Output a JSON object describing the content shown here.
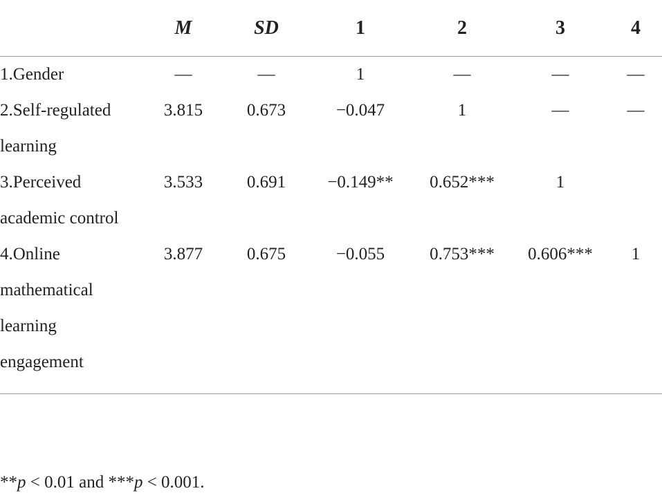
{
  "table": {
    "header": [
      "M",
      "SD",
      "1",
      "2",
      "3",
      "4"
    ],
    "rows": [
      {
        "label": "1.Gender",
        "cells": [
          "—",
          "—",
          "1",
          "—",
          "—",
          "—"
        ]
      },
      {
        "label": "2.Self-regulated learning",
        "cells": [
          "3.815",
          "0.673",
          "−0.047",
          "1",
          "—",
          "—"
        ]
      },
      {
        "label": "3.Perceived academic control",
        "cells": [
          "3.533",
          "0.691",
          "−0.149**",
          "0.652***",
          "1"
        ]
      },
      {
        "label": "4.Online mathematical learning engagement",
        "cells": [
          "3.877",
          "0.675",
          "−0.055",
          "0.753***",
          "0.606***",
          "1"
        ]
      }
    ]
  },
  "footnote": [
    "**",
    "p",
    " < 0.01 and ***",
    "p",
    " < 0.001."
  ]
}
